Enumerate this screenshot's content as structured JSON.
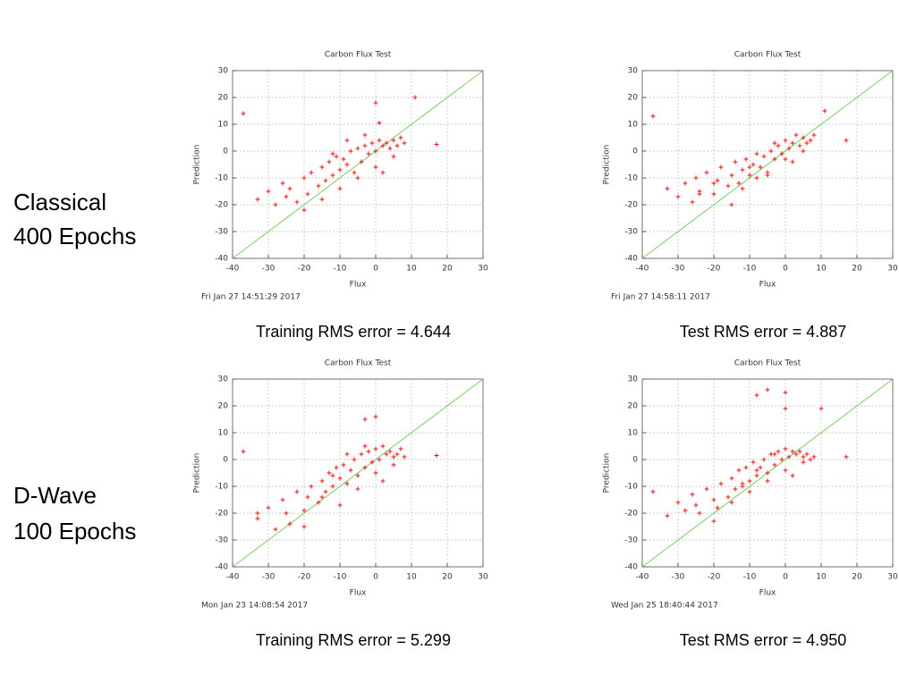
{
  "row_labels": [
    [
      "Classical",
      "400 Epochs"
    ],
    [
      "D-Wave",
      "100 Epochs"
    ]
  ],
  "chart_data": [
    {
      "type": "scatter",
      "title": "Carbon Flux Test",
      "xlabel": "Flux",
      "ylabel": "Prediction",
      "timestamp": "Fri Jan 27 14:51:29 2017",
      "caption": "Training RMS error = 4.644",
      "xlim": [
        -40,
        30
      ],
      "ylim": [
        -40,
        30
      ],
      "xticks": [
        -40,
        -30,
        -20,
        -10,
        0,
        10,
        20,
        30
      ],
      "yticks": [
        -40,
        -30,
        -20,
        -10,
        0,
        10,
        20,
        30
      ],
      "grid": true,
      "color": "#ee1111",
      "reference_line": {
        "x": [
          -40,
          30
        ],
        "y": [
          -40,
          30
        ],
        "color": "#77cc66"
      },
      "x": [
        -37,
        11,
        0,
        1,
        17,
        -33,
        -30,
        -28,
        -26,
        -25,
        -24,
        -22,
        -20,
        -19,
        -18,
        -16,
        -15,
        -14,
        -13,
        -12,
        -11,
        -10,
        -9,
        -8,
        -7,
        -6,
        -5,
        -4,
        -3,
        -2,
        -1,
        0,
        1,
        2,
        3,
        4,
        5,
        6,
        7,
        8,
        -20,
        -15,
        -10,
        -5,
        0,
        5,
        -12,
        -8,
        -3,
        2
      ],
      "values": [
        14,
        20,
        18,
        10.5,
        2.5,
        -18,
        -15,
        -20,
        -12,
        -17,
        -14,
        -19,
        -10,
        -16,
        -8,
        -13,
        -6,
        -11,
        -4,
        -9,
        -2,
        -7,
        -3,
        -5,
        0,
        -8,
        1,
        -4,
        2,
        -1,
        3,
        0,
        4,
        2,
        3,
        1,
        4,
        2,
        5,
        3,
        -22,
        -18,
        -14,
        -10,
        -6,
        -2,
        -1,
        4,
        6,
        -8
      ]
    },
    {
      "type": "scatter",
      "title": "Carbon Flux Test",
      "xlabel": "Flux",
      "ylabel": "Prediction",
      "timestamp": "Fri Jan 27 14:58:11 2017",
      "caption": "Test RMS error = 4.887",
      "xlim": [
        -40,
        30
      ],
      "ylim": [
        -40,
        30
      ],
      "xticks": [
        -40,
        -30,
        -20,
        -10,
        0,
        10,
        20,
        30
      ],
      "yticks": [
        -40,
        -30,
        -20,
        -10,
        0,
        10,
        20,
        30
      ],
      "grid": true,
      "color": "#ee1111",
      "reference_line": {
        "x": [
          -40,
          30
        ],
        "y": [
          -40,
          30
        ],
        "color": "#77cc66"
      },
      "x": [
        -37,
        11,
        17,
        -24,
        -33,
        -30,
        -28,
        -26,
        -25,
        -24,
        -22,
        -20,
        -19,
        -18,
        -16,
        -15,
        -14,
        -13,
        -12,
        -11,
        -10,
        -9,
        -8,
        -7,
        -6,
        -5,
        -4,
        -3,
        -2,
        -1,
        0,
        1,
        2,
        3,
        4,
        5,
        6,
        7,
        8,
        -20,
        -15,
        -10,
        -5,
        0,
        5,
        -12,
        -8,
        -3,
        2
      ],
      "values": [
        13,
        15,
        4,
        -16,
        -14,
        -17,
        -12,
        -19,
        -10,
        -15,
        -8,
        -16,
        -11,
        -6,
        -13,
        -9,
        -4,
        -12,
        -7,
        -3,
        -9,
        -5,
        -1,
        -6,
        -2,
        -8,
        0,
        -3,
        2,
        -1,
        4,
        1,
        3,
        6,
        2,
        5,
        3,
        4,
        6,
        -12,
        -20,
        -6,
        -9,
        -3,
        0,
        -14,
        -10,
        3,
        -4
      ]
    },
    {
      "type": "scatter",
      "title": "Carbon Flux Test",
      "xlabel": "Flux",
      "ylabel": "Prediction",
      "timestamp": "Mon Jan 23 14:08:54 2017",
      "caption": "Training RMS error = 5.299",
      "xlim": [
        -40,
        30
      ],
      "ylim": [
        -40,
        30
      ],
      "xticks": [
        -40,
        -30,
        -20,
        -10,
        0,
        10,
        20,
        30
      ],
      "yticks": [
        -40,
        -30,
        -20,
        -10,
        0,
        10,
        20,
        30
      ],
      "grid": true,
      "color": "#ee1111",
      "reference_line": {
        "x": [
          -40,
          30
        ],
        "y": [
          -40,
          30
        ],
        "color": "#77cc66"
      },
      "x": [
        -37,
        0,
        -3,
        17,
        -33,
        -33,
        -30,
        -28,
        -26,
        -25,
        -24,
        -22,
        -20,
        -19,
        -18,
        -16,
        -15,
        -14,
        -13,
        -12,
        -11,
        -10,
        -9,
        -8,
        -7,
        -6,
        -5,
        -4,
        -3,
        -2,
        -1,
        0,
        1,
        2,
        3,
        4,
        5,
        6,
        7,
        8,
        -20,
        -15,
        -10,
        -5,
        0,
        5,
        -12,
        -8,
        -3,
        2
      ],
      "values": [
        3,
        16,
        15,
        1.5,
        -20,
        -22,
        -18,
        -26,
        -15,
        -20,
        -24,
        -12,
        -19,
        -14,
        -10,
        -16,
        -8,
        -12,
        -5,
        -10,
        -3,
        -7,
        -2,
        -9,
        -4,
        0,
        -6,
        2,
        -3,
        3,
        -1,
        4,
        0,
        5,
        2,
        3,
        1,
        2,
        4,
        1,
        -25,
        -14,
        -17,
        -11,
        -5,
        -2,
        -6,
        2,
        5,
        -8
      ]
    },
    {
      "type": "scatter",
      "title": "Carbon Flux Test",
      "xlabel": "Flux",
      "ylabel": "Prediction",
      "timestamp": "Wed Jan 25 18:40:44 2017",
      "caption": "Test RMS error = 4.950",
      "xlim": [
        -40,
        30
      ],
      "ylim": [
        -40,
        30
      ],
      "xticks": [
        -40,
        -30,
        -20,
        -10,
        0,
        10,
        20,
        30
      ],
      "yticks": [
        -40,
        -30,
        -20,
        -10,
        0,
        10,
        20,
        30
      ],
      "grid": true,
      "color": "#ee1111",
      "reference_line": {
        "x": [
          -40,
          30
        ],
        "y": [
          -40,
          30
        ],
        "color": "#77cc66"
      },
      "x": [
        -37,
        -5,
        0,
        0,
        -8,
        10,
        17,
        -33,
        -30,
        -28,
        -26,
        -25,
        -24,
        -22,
        -20,
        -19,
        -18,
        -16,
        -15,
        -14,
        -13,
        -12,
        -11,
        -10,
        -9,
        -8,
        -7,
        -6,
        -5,
        -4,
        -3,
        -2,
        -1,
        0,
        1,
        2,
        3,
        4,
        5,
        6,
        7,
        8,
        -20,
        -15,
        -10,
        -5,
        0,
        5,
        -12,
        -8,
        -3,
        2
      ],
      "values": [
        -12,
        26,
        25,
        19,
        24,
        19,
        1,
        -21,
        -16,
        -19,
        -13,
        -17,
        -20,
        -11,
        -15,
        -18,
        -9,
        -14,
        -7,
        -11,
        -4,
        -10,
        -3,
        -8,
        -1,
        -6,
        -3,
        0,
        -5,
        2,
        -2,
        3,
        0,
        4,
        1,
        3,
        2,
        3,
        1,
        2,
        0,
        1,
        -23,
        -16,
        -12,
        -8,
        -4,
        -1,
        -9,
        -4,
        2,
        -6
      ]
    }
  ]
}
